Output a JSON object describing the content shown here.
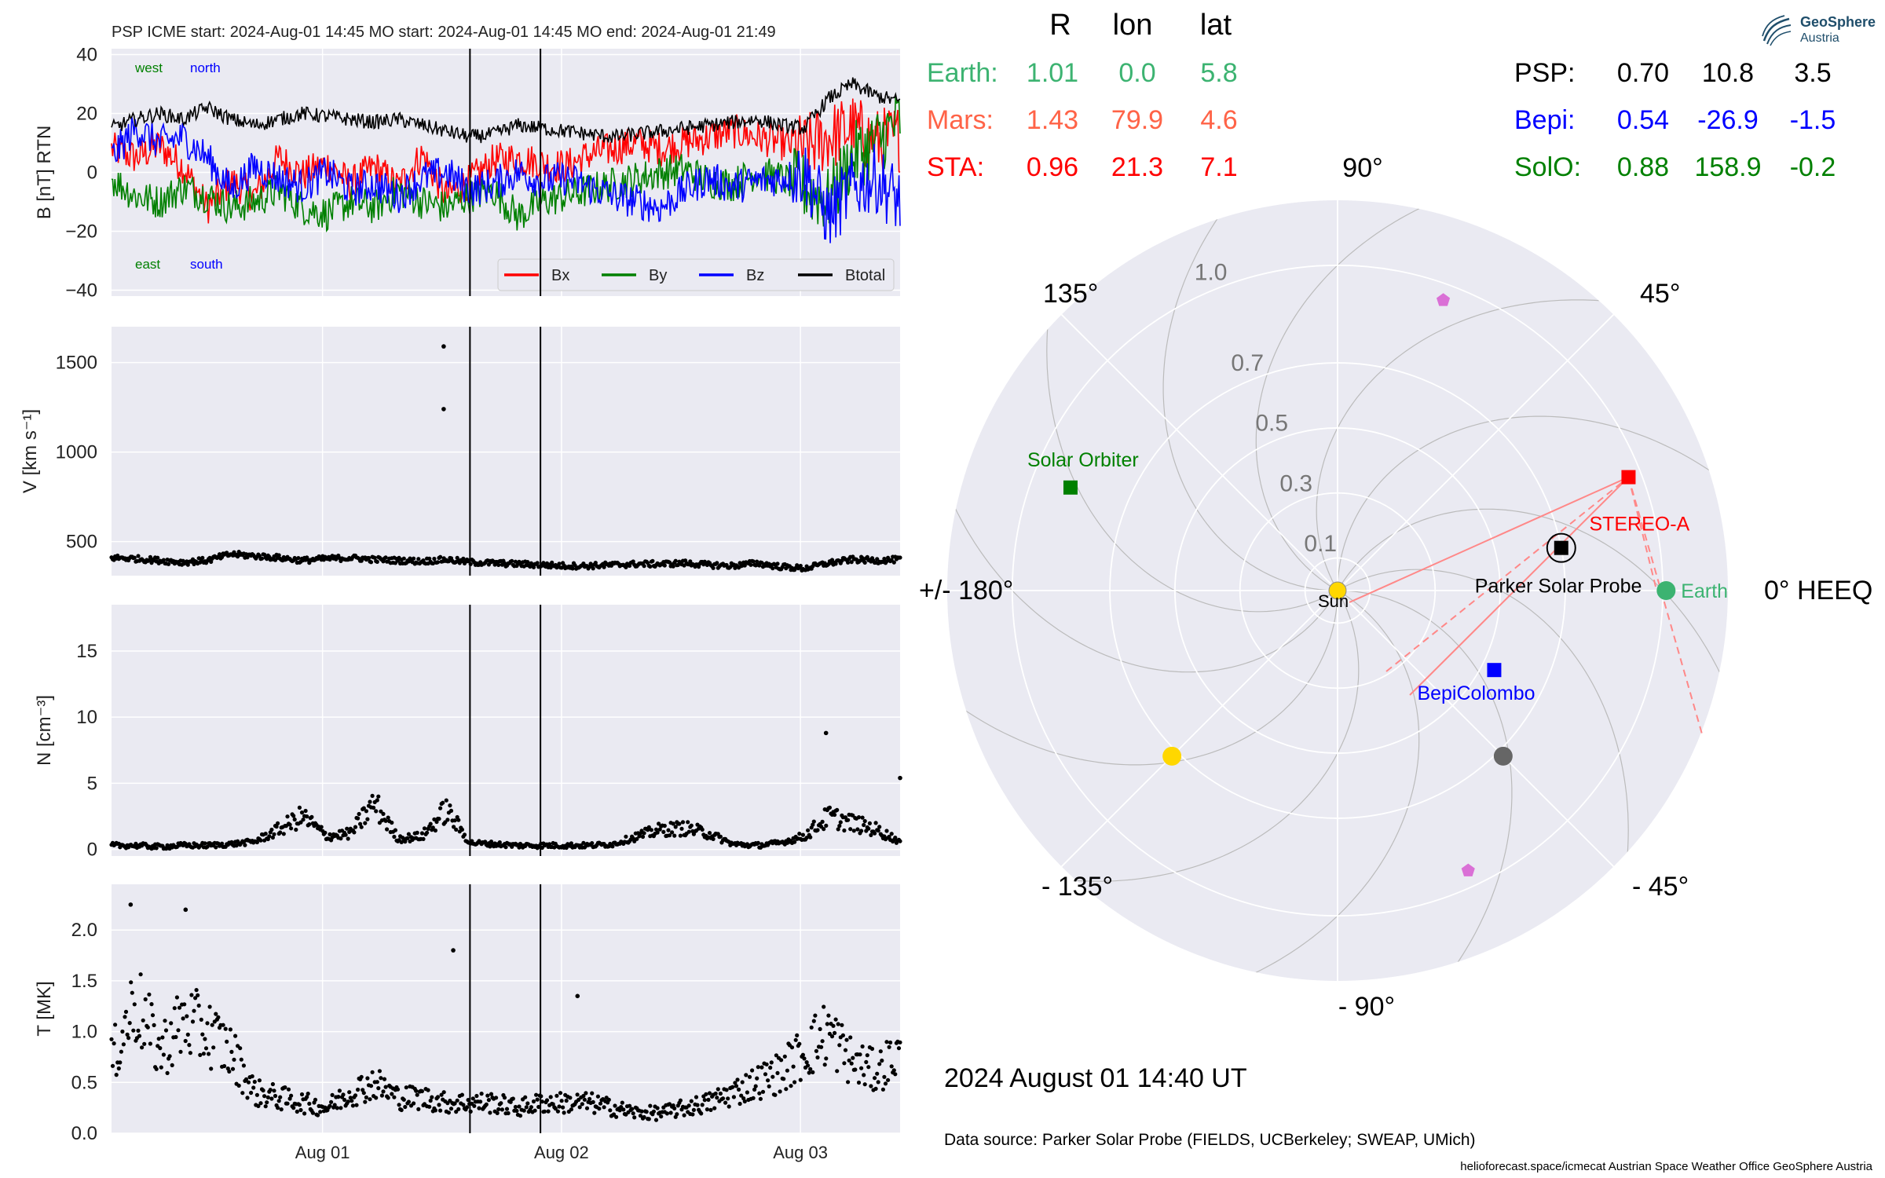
{
  "colors": {
    "bx": "#ff0000",
    "by": "#008000",
    "bz": "#0000ff",
    "btotal": "#000000",
    "earth": "#3cb371",
    "mars": "#ff6347",
    "sta": "#ff0000",
    "psp": "#000000",
    "bepi": "#0000ff",
    "solo": "#008000",
    "panel_bg": "#eaeaf2",
    "grid": "#ffffff",
    "polar_grid": "#bbbbbb",
    "planet_pink": "#da70d6",
    "gold": "#ffd700",
    "gray_body": "#666666"
  },
  "header": {
    "title": "PSP    ICME start: 2024-Aug-01 14:45   MO start: 2024-Aug-01 14:45   MO end: 2024-Aug-01 21:49"
  },
  "logo": {
    "line1": "GeoSphere",
    "line2": "Austria",
    "icon": "geosphere-logo-icon"
  },
  "positions_table": {
    "headers": [
      "R",
      "lon",
      "lat"
    ],
    "left_rows": [
      {
        "name": "Earth:",
        "r": "1.01",
        "lon": "0.0",
        "lat": "5.8",
        "color_key": "earth"
      },
      {
        "name": "Mars:",
        "r": "1.43",
        "lon": "79.9",
        "lat": "4.6",
        "color_key": "mars"
      },
      {
        "name": "STA:",
        "r": "0.96",
        "lon": "21.3",
        "lat": "7.1",
        "color_key": "sta"
      }
    ],
    "right_rows": [
      {
        "name": "PSP:",
        "r": "0.70",
        "lon": "10.8",
        "lat": "3.5",
        "color_key": "psp"
      },
      {
        "name": "Bepi:",
        "r": "0.54",
        "lon": "-26.9",
        "lat": "-1.5",
        "color_key": "bepi"
      },
      {
        "name": "SolO:",
        "r": "0.88",
        "lon": "158.9",
        "lat": "-0.2",
        "color_key": "solo"
      }
    ]
  },
  "timestamp": "2024 August 01  14:40 UT",
  "data_source": "Data source: Parker Solar Probe (FIELDS, UCBerkeley; SWEAP, UMich)",
  "footer": "helioforecast.space/icmecat   Austrian Space Weather Office   GeoSphere Austria",
  "chart_data": [
    {
      "type": "line",
      "panel": "magnetic_field",
      "ylabel": "B [nT] RTN",
      "ylim": [
        -42,
        42
      ],
      "yticks": [
        "40",
        "20",
        "0",
        "−20",
        "−40"
      ],
      "ytick_values": [
        40,
        20,
        0,
        -20,
        -40
      ],
      "xlim_days": [
        0,
        3.3
      ],
      "xtick_labels": [
        "Aug 01",
        "Aug 02",
        "Aug 03"
      ],
      "xtick_days": [
        0.883,
        1.883,
        2.883
      ],
      "event_lines_days": [
        1.5,
        1.795
      ],
      "annotations": {
        "west": "west",
        "north": "north",
        "east": "east",
        "south": "south"
      },
      "legend": [
        "Bx",
        "By",
        "Bz",
        "Btotal"
      ],
      "legend_placement": "bottom-right",
      "x": [
        0,
        0.1,
        0.2,
        0.3,
        0.4,
        0.5,
        0.6,
        0.7,
        0.8,
        0.9,
        1.0,
        1.1,
        1.2,
        1.3,
        1.4,
        1.5,
        1.6,
        1.7,
        1.8,
        1.9,
        2.0,
        2.1,
        2.2,
        2.3,
        2.4,
        2.5,
        2.6,
        2.7,
        2.8,
        2.9,
        3.0,
        3.1,
        3.2,
        3.3
      ],
      "series": [
        {
          "name": "Bx",
          "values": [
            8,
            5,
            9,
            2,
            -12,
            -3,
            -8,
            5,
            -1,
            3,
            -4,
            2,
            -5,
            6,
            -8,
            -3,
            4,
            5,
            3,
            2,
            6,
            8,
            10,
            8,
            10,
            12,
            14,
            12,
            10,
            8,
            12,
            15,
            10,
            12
          ]
        },
        {
          "name": "By",
          "values": [
            -2,
            -8,
            -10,
            -5,
            -8,
            -12,
            -10,
            -6,
            -12,
            -14,
            -10,
            -12,
            -6,
            -10,
            -12,
            -8,
            -6,
            -15,
            -10,
            -8,
            -6,
            -4,
            -2,
            0,
            1,
            -3,
            -4,
            0,
            -2,
            -5,
            -10,
            5,
            10,
            18
          ]
        },
        {
          "name": "Bz",
          "values": [
            5,
            15,
            10,
            12,
            5,
            -6,
            2,
            -2,
            -5,
            0,
            -6,
            -4,
            -8,
            -2,
            0,
            -6,
            -4,
            0,
            -3,
            -2,
            -5,
            -8,
            -10,
            -12,
            -6,
            -2,
            -5,
            -3,
            -2,
            0,
            -15,
            -5,
            -2,
            -10
          ]
        },
        {
          "name": "Btotal",
          "values": [
            15,
            18,
            20,
            18,
            22,
            18,
            16,
            18,
            20,
            19,
            18,
            17,
            18,
            16,
            14,
            12,
            13,
            16,
            15,
            14,
            13,
            12,
            13,
            14,
            15,
            16,
            17,
            18,
            16,
            15,
            25,
            30,
            26,
            24
          ]
        }
      ]
    },
    {
      "type": "scatter",
      "panel": "speed",
      "ylabel": "V [km s⁻¹]",
      "ylim": [
        310,
        1700
      ],
      "yticks": [
        "1500",
        "1000",
        "500"
      ],
      "ytick_values": [
        1500,
        1000,
        500
      ],
      "event_lines_days": [
        1.5,
        1.795
      ],
      "x": [
        0,
        0.1,
        0.2,
        0.3,
        0.4,
        0.5,
        0.6,
        0.7,
        0.8,
        0.9,
        1.0,
        1.1,
        1.2,
        1.3,
        1.4,
        1.5,
        1.6,
        1.7,
        1.8,
        1.9,
        2.0,
        2.1,
        2.2,
        2.3,
        2.4,
        2.5,
        2.6,
        2.7,
        2.8,
        2.9,
        3.0,
        3.1,
        3.2,
        3.3
      ],
      "values": [
        410,
        405,
        395,
        385,
        395,
        430,
        420,
        410,
        395,
        405,
        410,
        400,
        395,
        390,
        400,
        385,
        380,
        375,
        370,
        365,
        365,
        370,
        375,
        375,
        380,
        370,
        365,
        380,
        360,
        350,
        380,
        400,
        395,
        400
      ],
      "outliers": [
        {
          "x": 1.39,
          "y": 1590
        },
        {
          "x": 1.39,
          "y": 1240
        }
      ]
    },
    {
      "type": "scatter",
      "panel": "density",
      "ylabel": "N [cm⁻³]",
      "ylim": [
        -0.5,
        18.5
      ],
      "yticks": [
        "15",
        "10",
        "5",
        "0"
      ],
      "ytick_values": [
        15,
        10,
        5,
        0
      ],
      "event_lines_days": [
        1.5,
        1.795
      ],
      "x": [
        0,
        0.1,
        0.2,
        0.3,
        0.4,
        0.5,
        0.6,
        0.7,
        0.8,
        0.9,
        1.0,
        1.1,
        1.2,
        1.3,
        1.4,
        1.5,
        1.6,
        1.7,
        1.8,
        1.9,
        2.0,
        2.1,
        2.2,
        2.3,
        2.4,
        2.5,
        2.6,
        2.7,
        2.8,
        2.9,
        3.0,
        3.1,
        3.2,
        3.3
      ],
      "values": [
        0.3,
        0.3,
        0.2,
        0.3,
        0.3,
        0.4,
        0.6,
        1.5,
        2.5,
        1.0,
        1.2,
        3.5,
        0.8,
        1.0,
        3.0,
        0.5,
        0.4,
        0.3,
        0.3,
        0.3,
        0.3,
        0.4,
        1.0,
        1.5,
        1.6,
        1.2,
        0.4,
        0.3,
        0.5,
        1.0,
        2.5,
        2.0,
        1.5,
        0.6
      ],
      "outliers": [
        {
          "x": 2.99,
          "y": 8.8
        },
        {
          "x": 3.3,
          "y": 5.4
        }
      ]
    },
    {
      "type": "scatter",
      "panel": "temperature",
      "ylabel": "T [MK]",
      "ylim": [
        0,
        2.45
      ],
      "yticks": [
        "2.0",
        "1.5",
        "1.0",
        "0.5",
        "0.0"
      ],
      "ytick_values": [
        2.0,
        1.5,
        1.0,
        0.5,
        0.0
      ],
      "event_lines_days": [
        1.5,
        1.795
      ],
      "x": [
        0,
        0.1,
        0.2,
        0.3,
        0.4,
        0.5,
        0.6,
        0.7,
        0.8,
        0.9,
        1.0,
        1.1,
        1.2,
        1.3,
        1.4,
        1.5,
        1.6,
        1.7,
        1.8,
        1.9,
        2.0,
        2.1,
        2.2,
        2.3,
        2.4,
        2.5,
        2.6,
        2.7,
        2.8,
        2.9,
        3.0,
        3.1,
        3.2,
        3.3
      ],
      "values": [
        0.7,
        1.3,
        0.8,
        1.1,
        1.0,
        0.8,
        0.4,
        0.35,
        0.3,
        0.25,
        0.4,
        0.5,
        0.35,
        0.35,
        0.3,
        0.3,
        0.3,
        0.25,
        0.3,
        0.3,
        0.3,
        0.25,
        0.2,
        0.2,
        0.25,
        0.3,
        0.4,
        0.5,
        0.6,
        0.8,
        1.0,
        0.7,
        0.6,
        0.8
      ],
      "outliers": [
        {
          "x": 0.08,
          "y": 2.25
        },
        {
          "x": 0.31,
          "y": 2.2
        },
        {
          "x": 1.43,
          "y": 1.8
        },
        {
          "x": 1.95,
          "y": 1.35
        }
      ]
    },
    {
      "type": "scatter",
      "panel": "polar_position_map",
      "frame": "HEEQ",
      "angle_labels": {
        "a0": "0° HEEQ",
        "a45": "45°",
        "a90": "90°",
        "a135": "135°",
        "a180": "+/- 180°",
        "am135": "- 135°",
        "am90": "- 90°",
        "am45": "- 45°"
      },
      "radial_ticks": [
        0.1,
        0.3,
        0.5,
        0.7,
        1.0
      ],
      "radial_tick_labels": [
        "0.1",
        "0.3",
        "0.5",
        "0.7",
        "1.0"
      ],
      "r_max": 1.2,
      "bodies": [
        {
          "name": "Sun",
          "label": "Sun",
          "r": 0.0,
          "lon": 0,
          "color_key": "gold",
          "shape": "circle"
        },
        {
          "name": "Earth",
          "label": "Earth",
          "r": 1.01,
          "lon": 0.0,
          "color_key": "earth",
          "shape": "circle"
        },
        {
          "name": "STEREO-A",
          "label": "STEREO-A",
          "r": 0.96,
          "lon": 21.3,
          "color_key": "sta",
          "shape": "square"
        },
        {
          "name": "Parker Solar Probe",
          "label": "Parker Solar Probe",
          "r": 0.7,
          "lon": 10.8,
          "color_key": "psp",
          "shape": "square-ringed"
        },
        {
          "name": "BepiColombo",
          "label": "BepiColombo",
          "r": 0.54,
          "lon": -26.9,
          "color_key": "bepi",
          "shape": "square"
        },
        {
          "name": "Solar Orbiter",
          "label": "Solar Orbiter",
          "r": 0.88,
          "lon": 158.9,
          "color_key": "solo",
          "shape": "square"
        },
        {
          "name": "",
          "label": "",
          "r": 0.72,
          "lon": -45,
          "color_key": "gray_body",
          "shape": "circle"
        },
        {
          "name": "",
          "label": "",
          "r": 0.72,
          "lon": -135,
          "color_key": "gold",
          "shape": "circle"
        },
        {
          "name": "",
          "label": "",
          "r": 0.95,
          "lon": 70,
          "color_key": "planet_pink",
          "shape": "pentagon"
        },
        {
          "name": "",
          "label": "",
          "r": 0.95,
          "lon": -65,
          "color_key": "planet_pink",
          "shape": "pentagon"
        }
      ]
    }
  ]
}
